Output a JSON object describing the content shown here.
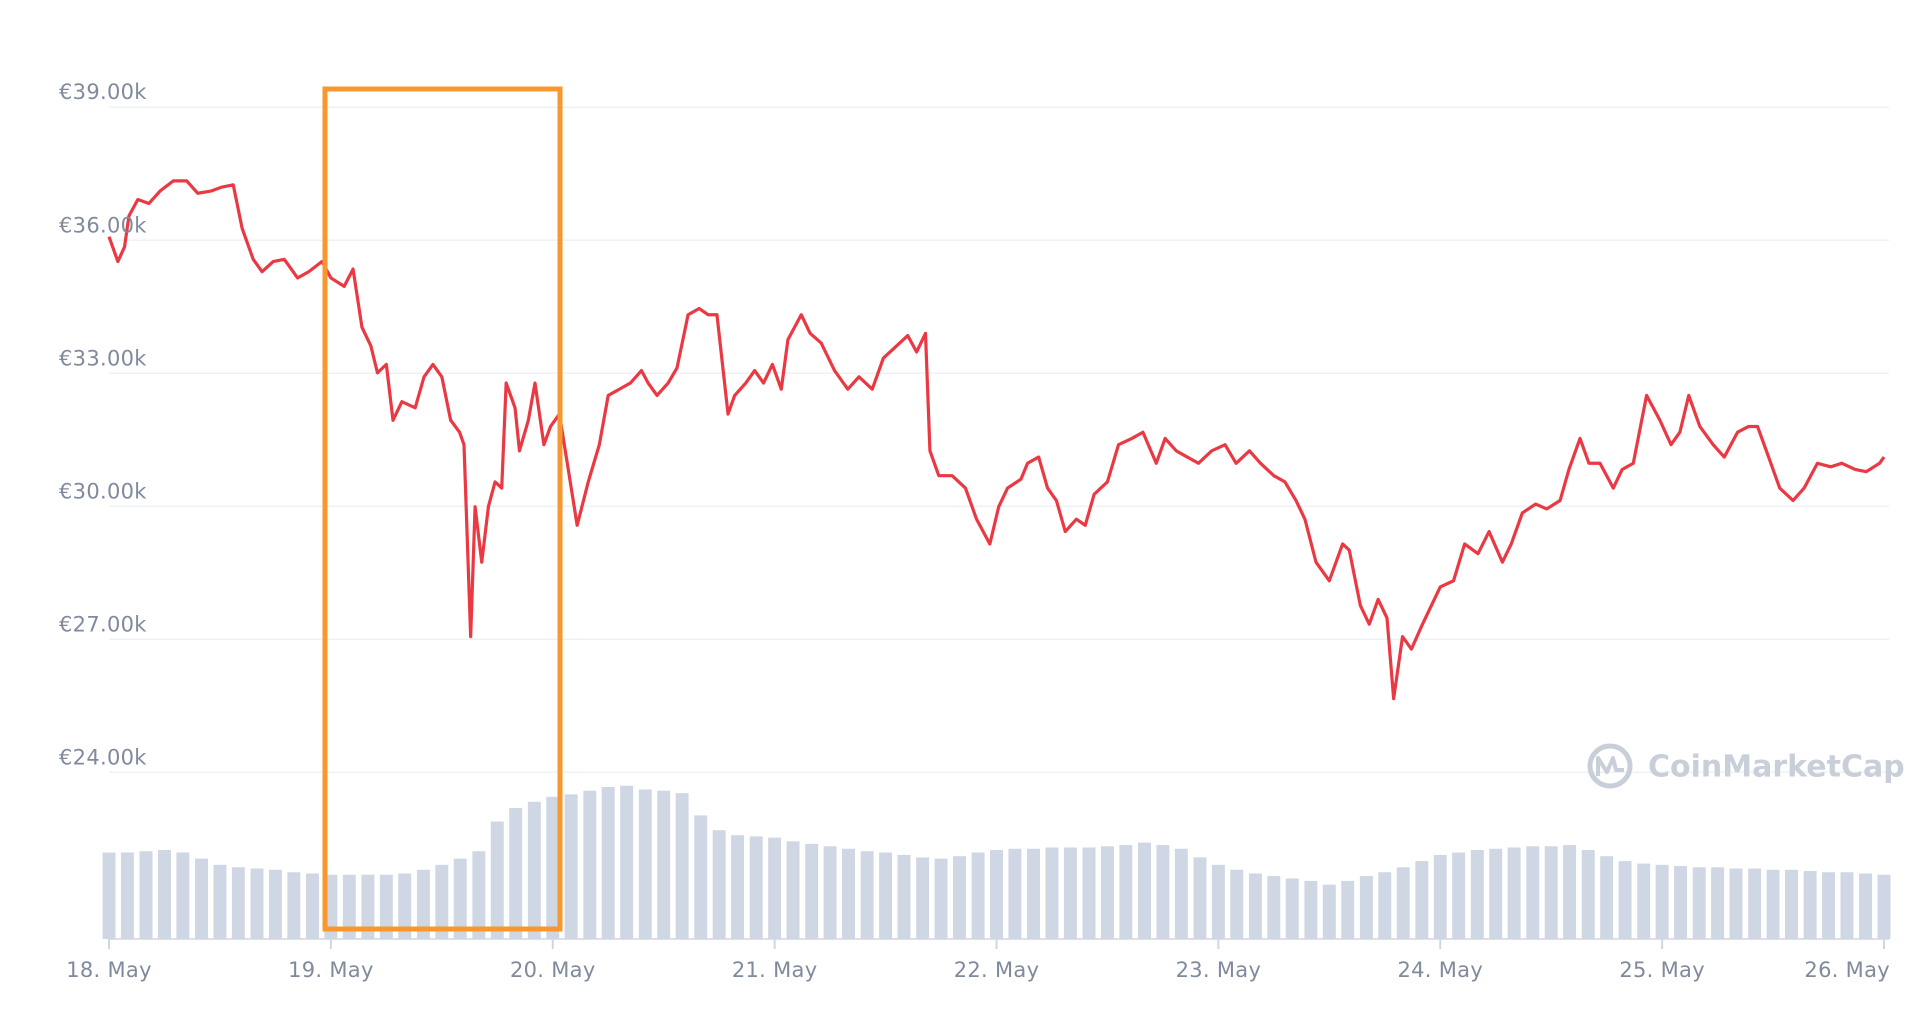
{
  "chart_data": {
    "type": "line",
    "grid": true,
    "watermark": "CoinMarketCap",
    "xlim": [
      0,
      8
    ],
    "xticks": [
      {
        "value": 0,
        "label": "18. May"
      },
      {
        "value": 1,
        "label": "19. May"
      },
      {
        "value": 2,
        "label": "20. May"
      },
      {
        "value": 3,
        "label": "21. May"
      },
      {
        "value": 4,
        "label": "22. May"
      },
      {
        "value": 5,
        "label": "23. May"
      },
      {
        "value": 6,
        "label": "24. May"
      },
      {
        "value": 7,
        "label": "25. May"
      },
      {
        "value": 8,
        "label": "26. May"
      }
    ],
    "ylim": [
      20240,
      39840
    ],
    "yticks": [
      {
        "value": 24000,
        "label": "€24.00k"
      },
      {
        "value": 27000,
        "label": "€27.00k"
      },
      {
        "value": 30000,
        "label": "€30.00k"
      },
      {
        "value": 33000,
        "label": "€33.00k"
      },
      {
        "value": 36000,
        "label": "€36.00k"
      },
      {
        "value": 39000,
        "label": "€39.00k"
      }
    ],
    "y2lim": [
      0,
      703
    ],
    "series": [
      {
        "type": "line",
        "color": "#ea3943",
        "x": [
          0,
          0.04,
          0.07,
          0.09,
          0.13,
          0.18,
          0.23,
          0.29,
          0.35,
          0.4,
          0.46,
          0.51,
          0.56,
          0.6,
          0.65,
          0.69,
          0.74,
          0.79,
          0.85,
          0.9,
          0.96,
          1.0,
          1.06,
          1.1,
          1.14,
          1.18,
          1.21,
          1.25,
          1.28,
          1.32,
          1.38,
          1.42,
          1.46,
          1.5,
          1.54,
          1.58,
          1.6,
          1.63,
          1.65,
          1.68,
          1.71,
          1.74,
          1.77,
          1.79,
          1.83,
          1.85,
          1.89,
          1.92,
          1.96,
          1.99,
          2.03,
          2.07,
          2.11,
          2.16,
          2.21,
          2.25,
          2.3,
          2.35,
          2.4,
          2.43,
          2.47,
          2.52,
          2.56,
          2.61,
          2.66,
          2.7,
          2.74,
          2.79,
          2.82,
          2.87,
          2.91,
          2.95,
          2.99,
          3.03,
          3.06,
          3.12,
          3.16,
          3.21,
          3.27,
          3.33,
          3.38,
          3.44,
          3.49,
          3.55,
          3.6,
          3.64,
          3.68,
          3.7,
          3.74,
          3.8,
          3.86,
          3.91,
          3.97,
          4.01,
          4.05,
          4.11,
          4.14,
          4.19,
          4.23,
          4.27,
          4.31,
          4.36,
          4.4,
          4.44,
          4.5,
          4.55,
          4.61,
          4.66,
          4.72,
          4.76,
          4.81,
          4.86,
          4.91,
          4.97,
          5.03,
          5.08,
          5.14,
          5.19,
          5.25,
          5.3,
          5.35,
          5.39,
          5.44,
          5.5,
          5.56,
          5.59,
          5.64,
          5.68,
          5.72,
          5.76,
          5.79,
          5.83,
          5.87,
          5.92,
          5.96,
          6.0,
          6.06,
          6.11,
          6.17,
          6.22,
          6.28,
          6.32,
          6.37,
          6.43,
          6.48,
          6.54,
          6.58,
          6.63,
          6.67,
          6.72,
          6.78,
          6.82,
          6.87,
          6.93,
          6.99,
          7.04,
          7.08,
          7.12,
          7.17,
          7.23,
          7.28,
          7.34,
          7.39,
          7.43,
          7.48,
          7.53,
          7.59,
          7.64,
          7.7,
          7.76,
          7.81,
          7.87,
          7.92,
          7.98,
          8.0
        ],
        "values": [
          36080,
          35520,
          35850,
          36550,
          36920,
          36830,
          37110,
          37340,
          37340,
          37060,
          37110,
          37200,
          37250,
          36270,
          35570,
          35290,
          35520,
          35570,
          35150,
          35290,
          35520,
          35150,
          34960,
          35350,
          34040,
          33620,
          33010,
          33200,
          31940,
          32360,
          32220,
          32920,
          33200,
          32920,
          31940,
          31670,
          31390,
          27060,
          29990,
          28740,
          29990,
          30550,
          30410,
          32780,
          32220,
          31250,
          31940,
          32780,
          31390,
          31800,
          32080,
          30830,
          29570,
          30550,
          31390,
          32500,
          32640,
          32780,
          33060,
          32780,
          32500,
          32780,
          33120,
          34320,
          34460,
          34320,
          34320,
          32080,
          32500,
          32780,
          33060,
          32780,
          33200,
          32640,
          33760,
          34320,
          33900,
          33680,
          33060,
          32640,
          32920,
          32640,
          33340,
          33620,
          33850,
          33480,
          33900,
          31250,
          30690,
          30690,
          30410,
          29710,
          29150,
          29990,
          30410,
          30610,
          30970,
          31110,
          30410,
          30130,
          29430,
          29710,
          29570,
          30270,
          30550,
          31390,
          31530,
          31670,
          30970,
          31530,
          31250,
          31110,
          30970,
          31250,
          31390,
          30970,
          31250,
          30970,
          30690,
          30550,
          30130,
          29710,
          28740,
          28320,
          29150,
          29010,
          27760,
          27340,
          27900,
          27480,
          25660,
          27060,
          26780,
          27340,
          27760,
          28180,
          28320,
          29150,
          28930,
          29430,
          28740,
          29150,
          29850,
          30050,
          29940,
          30130,
          30830,
          31530,
          30970,
          30970,
          30410,
          30830,
          30970,
          32500,
          31940,
          31390,
          31670,
          32500,
          31800,
          31390,
          31110,
          31670,
          31800,
          31800,
          31110,
          30410,
          30130,
          30410,
          30970,
          30890,
          30970,
          30830,
          30780,
          30970,
          31110
        ]
      },
      {
        "type": "bar",
        "axis": "y2",
        "color": "#cfd6e4",
        "x": [
          0,
          0.083,
          0.167,
          0.25,
          0.333,
          0.417,
          0.5,
          0.583,
          0.667,
          0.75,
          0.833,
          0.917,
          1,
          1.083,
          1.167,
          1.25,
          1.333,
          1.417,
          1.5,
          1.583,
          1.667,
          1.75,
          1.833,
          1.917,
          2,
          2.083,
          2.167,
          2.25,
          2.333,
          2.417,
          2.5,
          2.583,
          2.667,
          2.75,
          2.833,
          2.917,
          3,
          3.083,
          3.167,
          3.25,
          3.333,
          3.417,
          3.5,
          3.583,
          3.667,
          3.75,
          3.833,
          3.917,
          4,
          4.083,
          4.167,
          4.25,
          4.333,
          4.417,
          4.5,
          4.583,
          4.667,
          4.75,
          4.833,
          4.917,
          5,
          5.083,
          5.167,
          5.25,
          5.333,
          5.417,
          5.5,
          5.583,
          5.667,
          5.75,
          5.833,
          5.917,
          6,
          6.083,
          6.167,
          6.25,
          6.333,
          6.417,
          6.5,
          6.583,
          6.667,
          6.75,
          6.833,
          6.917,
          7,
          7.083,
          7.167,
          7.25,
          7.333,
          7.417,
          7.5,
          7.583,
          7.667,
          7.75,
          7.833,
          7.917,
          8
        ],
        "values": [
          70,
          70,
          71,
          72,
          70,
          65,
          60,
          58,
          57,
          56,
          54,
          53,
          52,
          52,
          52,
          52,
          53,
          56,
          60,
          65,
          71,
          95,
          106,
          111,
          115,
          117,
          120,
          123,
          124,
          121,
          120,
          118,
          100,
          88,
          84,
          83,
          82,
          79,
          77,
          75,
          73,
          71,
          70,
          68,
          66,
          65,
          67,
          70,
          72,
          73,
          73,
          74,
          74,
          74,
          75,
          76,
          78,
          76,
          73,
          66,
          60,
          56,
          53,
          51,
          49,
          47,
          44,
          47,
          51,
          54,
          58,
          63,
          68,
          70,
          72,
          73,
          74,
          75,
          75,
          76,
          72,
          67,
          63,
          61,
          60,
          59,
          58,
          58,
          57,
          57,
          56,
          56,
          55,
          54,
          54,
          53,
          52
        ]
      }
    ]
  }
}
